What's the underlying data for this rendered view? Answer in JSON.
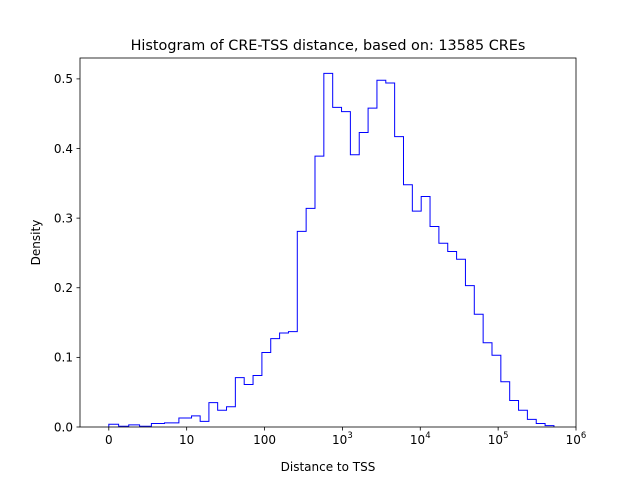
{
  "chart_data": {
    "type": "histogram",
    "title": "Histogram of CRE-TSS distance, based on: 13585 CREs",
    "xlabel": "Distance to TSS",
    "ylabel": "Density",
    "x_scale": "symlog",
    "x_linthresh": 10,
    "xlim": [
      -3.7,
      1000000
    ],
    "ylim": [
      0,
      0.53
    ],
    "x_ticks": [
      {
        "value": 0,
        "base": "0",
        "exp": ""
      },
      {
        "value": 10,
        "base": "10",
        "exp": ""
      },
      {
        "value": 100,
        "base": "100",
        "exp": ""
      },
      {
        "value": 1000,
        "base": "10",
        "exp": "3"
      },
      {
        "value": 10000,
        "base": "10",
        "exp": "4"
      },
      {
        "value": 100000,
        "base": "10",
        "exp": "5"
      },
      {
        "value": 1000000,
        "base": "10",
        "exp": "6"
      }
    ],
    "y_ticks": [
      {
        "value": 0.0,
        "label": "0.0"
      },
      {
        "value": 0.1,
        "label": "0.1"
      },
      {
        "value": 0.2,
        "label": "0.2"
      },
      {
        "value": 0.3,
        "label": "0.3"
      },
      {
        "value": 0.4,
        "label": "0.4"
      },
      {
        "value": 0.5,
        "label": "0.5"
      }
    ],
    "bin_edges": [
      0,
      1.26,
      2.56,
      3.95,
      5.47,
      7.15,
      9.0,
      11.55,
      14.9,
      19.3,
      25.0,
      32.5,
      42.2,
      54.8,
      71.2,
      92.5,
      120.1,
      156.1,
      202.8,
      263.4,
      342.2,
      444.6,
      577.6,
      750.3,
      974.8,
      1266,
      1645,
      2137,
      2777,
      3607,
      4686,
      6088,
      7910,
      10276,
      13350,
      17343,
      22531,
      29271,
      38028,
      49405,
      64184,
      83385,
      108330,
      140730,
      182830,
      237530,
      308580,
      400890,
      520830
    ],
    "values": [
      0.004,
      0.001,
      0.003,
      0.001,
      0.005,
      0.006,
      0.013,
      0.016,
      0.008,
      0.035,
      0.024,
      0.029,
      0.071,
      0.061,
      0.074,
      0.107,
      0.127,
      0.135,
      0.137,
      0.281,
      0.314,
      0.389,
      0.508,
      0.459,
      0.453,
      0.391,
      0.423,
      0.458,
      0.498,
      0.494,
      0.417,
      0.348,
      0.31,
      0.331,
      0.288,
      0.264,
      0.252,
      0.241,
      0.203,
      0.162,
      0.121,
      0.103,
      0.065,
      0.038,
      0.024,
      0.011,
      0.005,
      0.002
    ],
    "color": "#0000ff"
  }
}
